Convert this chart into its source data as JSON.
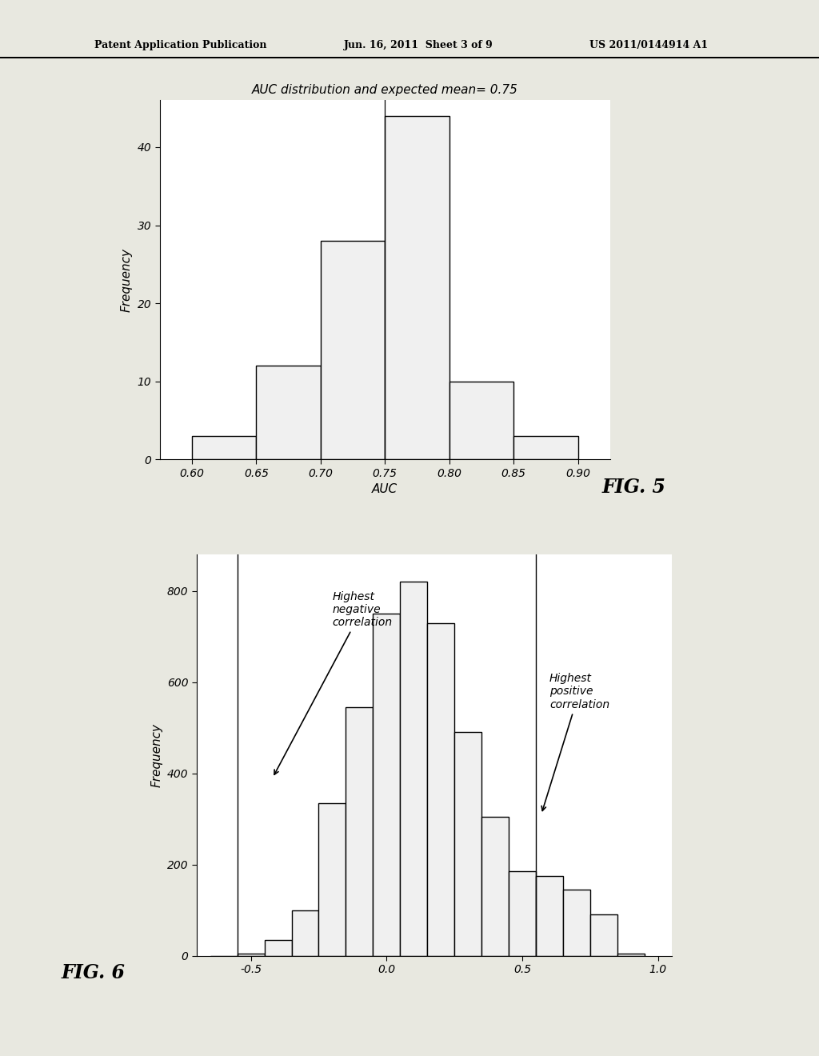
{
  "fig5": {
    "title": "AUC distribution and expected mean= 0.75",
    "xlabel": "AUC",
    "ylabel": "Frequency",
    "bin_edges": [
      0.6,
      0.65,
      0.7,
      0.75,
      0.8,
      0.85,
      0.9
    ],
    "frequencies": [
      3,
      12,
      28,
      44,
      10,
      3
    ],
    "yticks": [
      0,
      10,
      20,
      30,
      40
    ],
    "xticks": [
      0.6,
      0.65,
      0.7,
      0.75,
      0.8,
      0.85,
      0.9
    ],
    "xlim": [
      0.575,
      0.925
    ],
    "ylim": [
      0,
      46
    ],
    "vline": 0.75,
    "fig_label": "FIG. 5"
  },
  "fig6": {
    "ylabel": "Frequency",
    "bin_edges": [
      -0.65,
      -0.55,
      -0.45,
      -0.35,
      -0.25,
      -0.15,
      -0.05,
      0.05,
      0.15,
      0.25,
      0.35,
      0.45,
      0.55,
      0.65,
      0.75,
      0.85,
      0.95
    ],
    "frequencies": [
      0,
      5,
      35,
      100,
      335,
      545,
      750,
      820,
      730,
      490,
      305,
      185,
      175,
      145,
      90,
      5
    ],
    "yticks": [
      0,
      200,
      400,
      600,
      800
    ],
    "xtick_vals": [
      -0.5,
      0.0,
      0.5,
      1.0
    ],
    "xtick_labels": [
      "-0.5",
      "0.0",
      "0.5",
      "1.0"
    ],
    "xlim": [
      -0.7,
      1.05
    ],
    "ylim": [
      0,
      880
    ],
    "vline_neg": -0.55,
    "vline_pos": 0.55,
    "fig_label": "FIG. 6"
  },
  "header_line1": "Patent Application Publication",
  "header_line2": "Jun. 16, 2011  Sheet 3 of 9",
  "header_line3": "US 2011/0144914 A1",
  "page_bg": "#e8e8e0",
  "plot_bg": "#ffffff",
  "bar_facecolor": "#f0f0f0",
  "bar_edgecolor": "#000000",
  "text_color": "#000000",
  "line_color": "#000000"
}
